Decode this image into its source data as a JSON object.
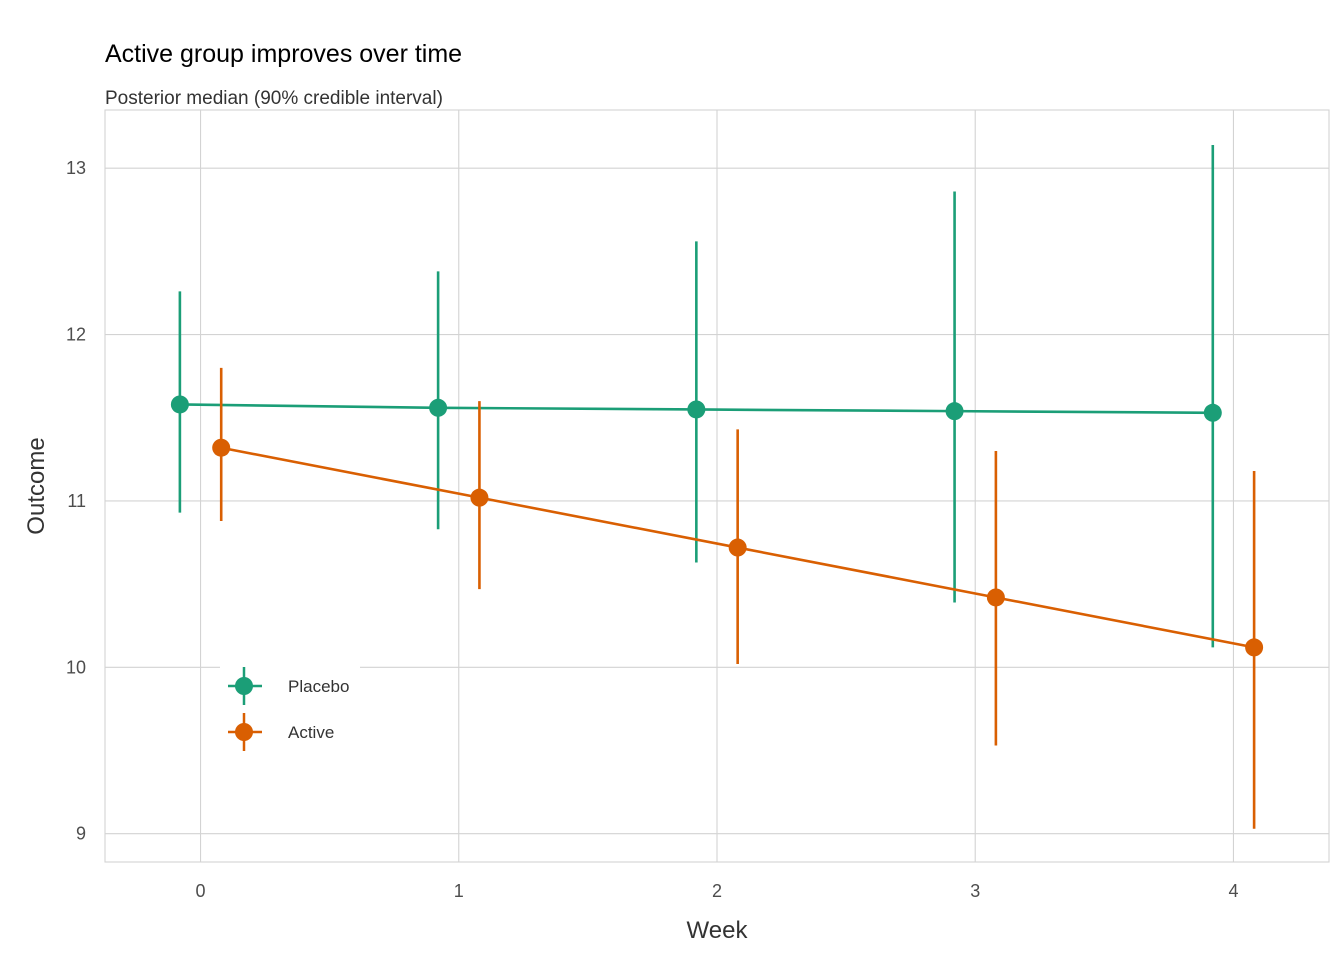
{
  "chart_data": {
    "type": "line",
    "title": "Active group improves over time",
    "subtitle": "Posterior median (90% credible interval)",
    "xlabel": "Week",
    "ylabel": "Outcome",
    "x_ticks": [
      0,
      1,
      2,
      3,
      4
    ],
    "y_ticks": [
      9,
      10,
      11,
      12,
      13
    ],
    "xlim": [
      -0.37,
      4.37
    ],
    "ylim": [
      8.83,
      13.35
    ],
    "grid": true,
    "legend_position": "bottom-left inside",
    "dodge": 0.08,
    "series": [
      {
        "name": "Placebo",
        "color": "#1b9e77",
        "x": [
          0,
          1,
          2,
          3,
          4
        ],
        "median": [
          11.58,
          11.56,
          11.55,
          11.54,
          11.53
        ],
        "lower": [
          10.93,
          10.83,
          10.63,
          10.39,
          10.12
        ],
        "upper": [
          12.26,
          12.38,
          12.56,
          12.86,
          13.14
        ]
      },
      {
        "name": "Active",
        "color": "#d95f02",
        "x": [
          0,
          1,
          2,
          3,
          4
        ],
        "median": [
          11.32,
          11.02,
          10.72,
          10.42,
          10.12
        ],
        "lower": [
          10.88,
          10.47,
          10.02,
          9.53,
          9.03
        ],
        "upper": [
          11.8,
          11.6,
          11.43,
          11.3,
          11.18
        ]
      }
    ]
  }
}
